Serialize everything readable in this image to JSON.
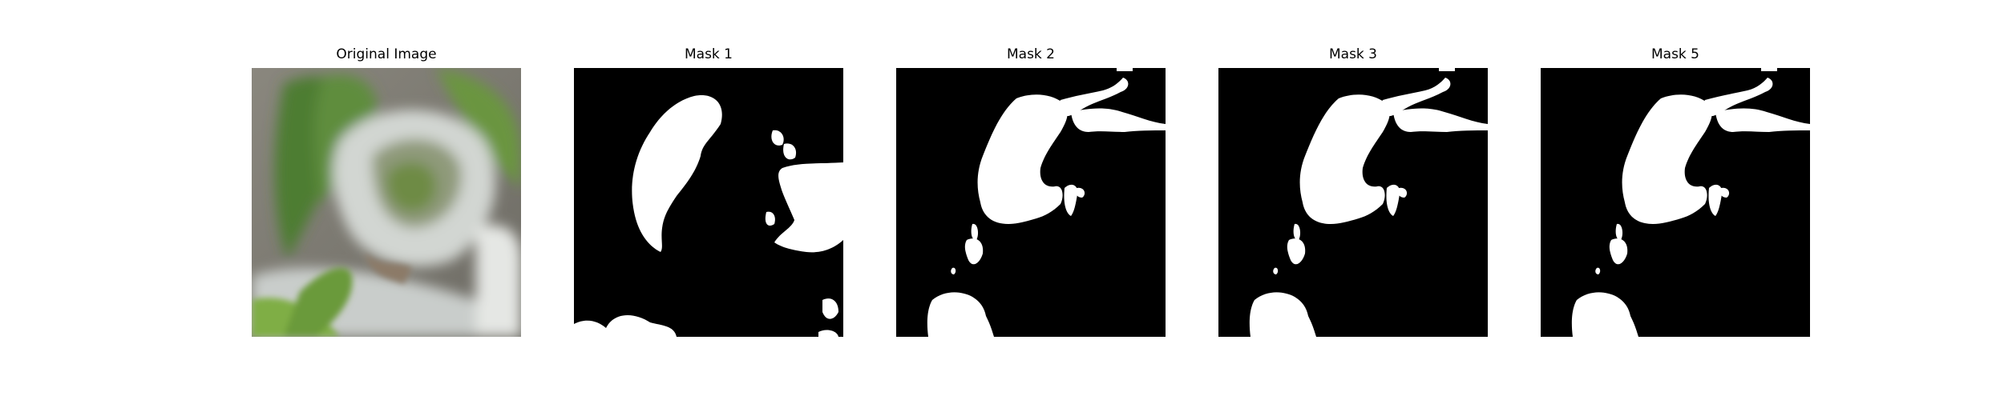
{
  "figure": {
    "panels": [
      {
        "title": "Original Image"
      },
      {
        "title": "Mask 1"
      },
      {
        "title": "Mask 2"
      },
      {
        "title": "Mask 3"
      },
      {
        "title": "Mask 5"
      }
    ]
  },
  "colors": {
    "mask_background": "#000000",
    "mask_foreground": "#ffffff",
    "photo_leaf_dark": "#4f7a2e",
    "photo_leaf_light": "#86b24a",
    "photo_white_pot": "#d5d9d6",
    "photo_background": "#7d7b74"
  }
}
